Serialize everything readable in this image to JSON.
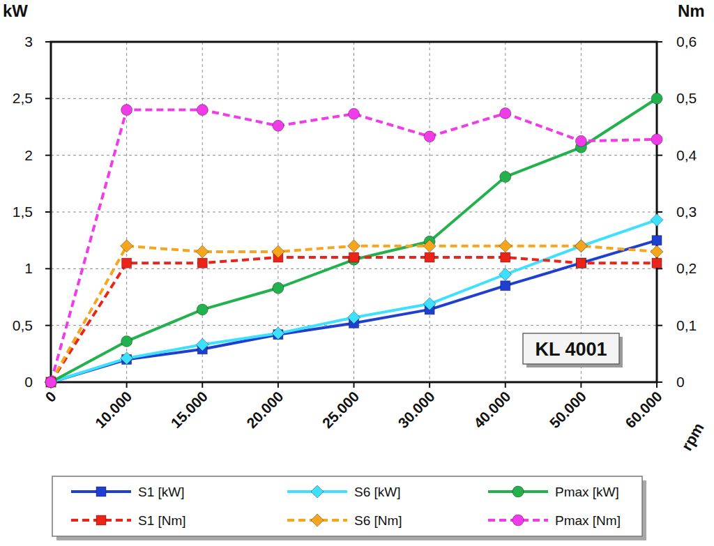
{
  "chart_data": {
    "type": "line",
    "annotation": "KL 4001",
    "x_label": "rpm",
    "y_label": "kW",
    "y2_label": "Nm",
    "categories": [
      "0",
      "10.000",
      "15.000",
      "20.000",
      "25.000",
      "30.000",
      "40.000",
      "50.000",
      "60.000"
    ],
    "ylim": [
      0,
      3
    ],
    "yticks": [
      0,
      {
        "value": 0.5,
        "label": "0,5"
      },
      1,
      {
        "value": 1.5,
        "label": "1,5"
      },
      2,
      {
        "value": 2.5,
        "label": "2,5"
      },
      3
    ],
    "y2lim": [
      0,
      0.6
    ],
    "y2ticks": [
      0,
      {
        "value": 0.1,
        "label": "0,1"
      },
      {
        "value": 0.2,
        "label": "0,2"
      },
      {
        "value": 0.3,
        "label": "0,3"
      },
      {
        "value": 0.4,
        "label": "0,4"
      },
      {
        "value": 0.5,
        "label": "0,5"
      },
      {
        "value": 0.6,
        "label": "0,6"
      }
    ],
    "grid": true,
    "legend": "bottom",
    "series": [
      {
        "name": "S1 [kW]",
        "color": "#1f3fd0",
        "marker": "square",
        "line_style": "solid",
        "values": [
          0,
          0.2,
          0.29,
          0.42,
          0.52,
          0.64,
          0.85,
          1.05,
          1.25
        ]
      },
      {
        "name": "S6 [kW]",
        "color": "#3ee0ff",
        "marker": "diamond",
        "line_style": "solid",
        "values": [
          0,
          0.21,
          0.33,
          0.43,
          0.57,
          0.69,
          0.95,
          1.2,
          1.43
        ]
      },
      {
        "name": "Pmax [kW]",
        "color": "#22b14c",
        "marker": "circle",
        "line_style": "solid",
        "values": [
          0,
          0.36,
          0.64,
          0.83,
          1.08,
          1.24,
          1.81,
          2.07,
          2.5
        ]
      },
      {
        "name": "S1 [Nm]",
        "color": "#ea2418",
        "marker": "square",
        "line_style": "dashed",
        "axis": "y2",
        "values": [
          0,
          0.21,
          0.21,
          0.22,
          0.22,
          0.22,
          0.22,
          0.21,
          0.21
        ]
      },
      {
        "name": "S6 [Nm]",
        "color": "#f7a51c",
        "marker": "diamond",
        "line_style": "dashed",
        "axis": "y2",
        "values": [
          0,
          0.24,
          0.23,
          0.23,
          0.24,
          0.24,
          0.24,
          0.24,
          0.23
        ]
      },
      {
        "name": "Pmax [Nm]",
        "color": "#f03ce8",
        "marker": "circle",
        "line_style": "dashed",
        "axis": "y2",
        "values": [
          0,
          0.48,
          0.48,
          0.452,
          0.473,
          0.433,
          0.474,
          0.425,
          0.428
        ]
      }
    ]
  }
}
